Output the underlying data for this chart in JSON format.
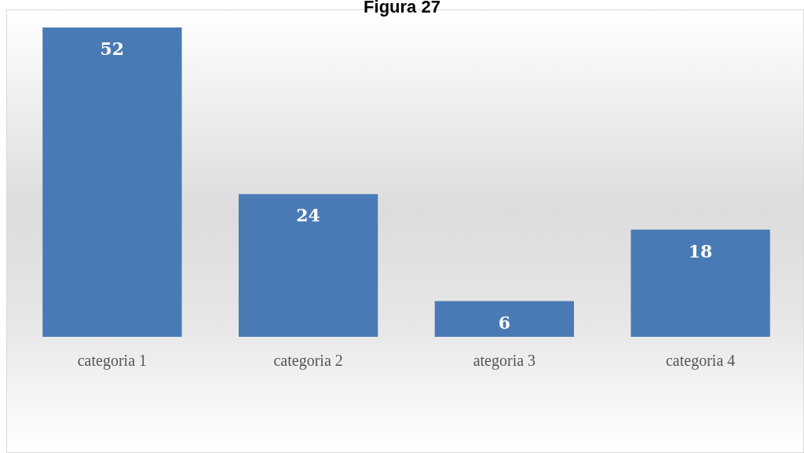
{
  "chart_data": {
    "type": "bar",
    "title": "Figura 27",
    "categories": [
      "categoria 1",
      "categoria 2",
      "ategoria 3",
      "categoria 4"
    ],
    "values": [
      52,
      24,
      6,
      18
    ],
    "color": "#4a7ab5",
    "data_labels": true
  }
}
